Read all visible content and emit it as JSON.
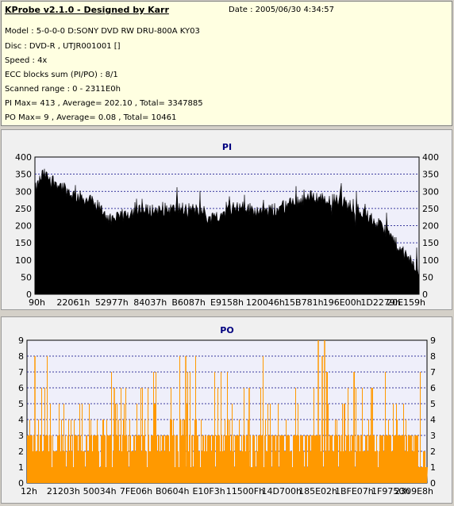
{
  "header": {
    "title": "KProbe v2.1.0 - Designed by Karr",
    "date": "Date : 2005/06/30 4:34:57",
    "lines": [
      "Model : 5-0-0-0 D:SONY    DVD RW DRU-800A  KY03",
      "Disc : DVD-R , UTJR001001 []",
      "Speed : 4x",
      "ECC blocks sum (PI/PO) : 8/1",
      "Scanned range : 0 - 2311E0h",
      "PI Max= 413 , Average= 202.10 , Total= 3347885",
      "PO Max= 9 , Average= 0.08 , Total= 10461"
    ]
  },
  "colors": {
    "pi_fill": "#000000",
    "po_fill": "#ff9900",
    "title_color": "#000080",
    "plot_bg": "#efeffa",
    "grid": "#000080"
  },
  "chart_data": [
    {
      "type": "area",
      "title": "PI",
      "ylim": [
        0,
        400
      ],
      "y_ticks": [
        "0",
        "50",
        "100",
        "150",
        "200",
        "250",
        "300",
        "350",
        "400"
      ],
      "x_ticks": [
        "90h",
        "22061h",
        "52977h",
        "84037h",
        "B6087h",
        "E9158h",
        "120046h",
        "15B781h",
        "196E00h",
        "1D2279h",
        "20E159h"
      ],
      "grid": true,
      "profile_x": [
        0,
        0.02,
        0.05,
        0.1,
        0.15,
        0.18,
        0.2,
        0.22,
        0.25,
        0.3,
        0.35,
        0.4,
        0.44,
        0.45,
        0.48,
        0.52,
        0.55,
        0.6,
        0.63,
        0.68,
        0.72,
        0.75,
        0.8,
        0.85,
        0.88,
        0.92,
        0.95,
        0.98,
        1.0
      ],
      "profile_y": [
        300,
        350,
        330,
        290,
        270,
        240,
        210,
        225,
        240,
        245,
        248,
        250,
        240,
        220,
        230,
        255,
        250,
        240,
        248,
        270,
        285,
        280,
        270,
        240,
        215,
        180,
        130,
        95,
        60
      ],
      "max_value": 413
    },
    {
      "type": "bar",
      "title": "PO",
      "ylim": [
        0,
        9
      ],
      "y_ticks": [
        "0",
        "1",
        "2",
        "3",
        "4",
        "5",
        "6",
        "7",
        "8",
        "9"
      ],
      "x_ticks": [
        "12h",
        "21203h",
        "50034h",
        "7FE06h",
        "B0604h",
        "E10F3h",
        "11500Fh",
        "14D700h",
        "185E02h",
        "1BFE07h",
        "1F9750h",
        "2309E8h"
      ],
      "grid": true,
      "baseline": 3,
      "max_value": 9
    }
  ]
}
